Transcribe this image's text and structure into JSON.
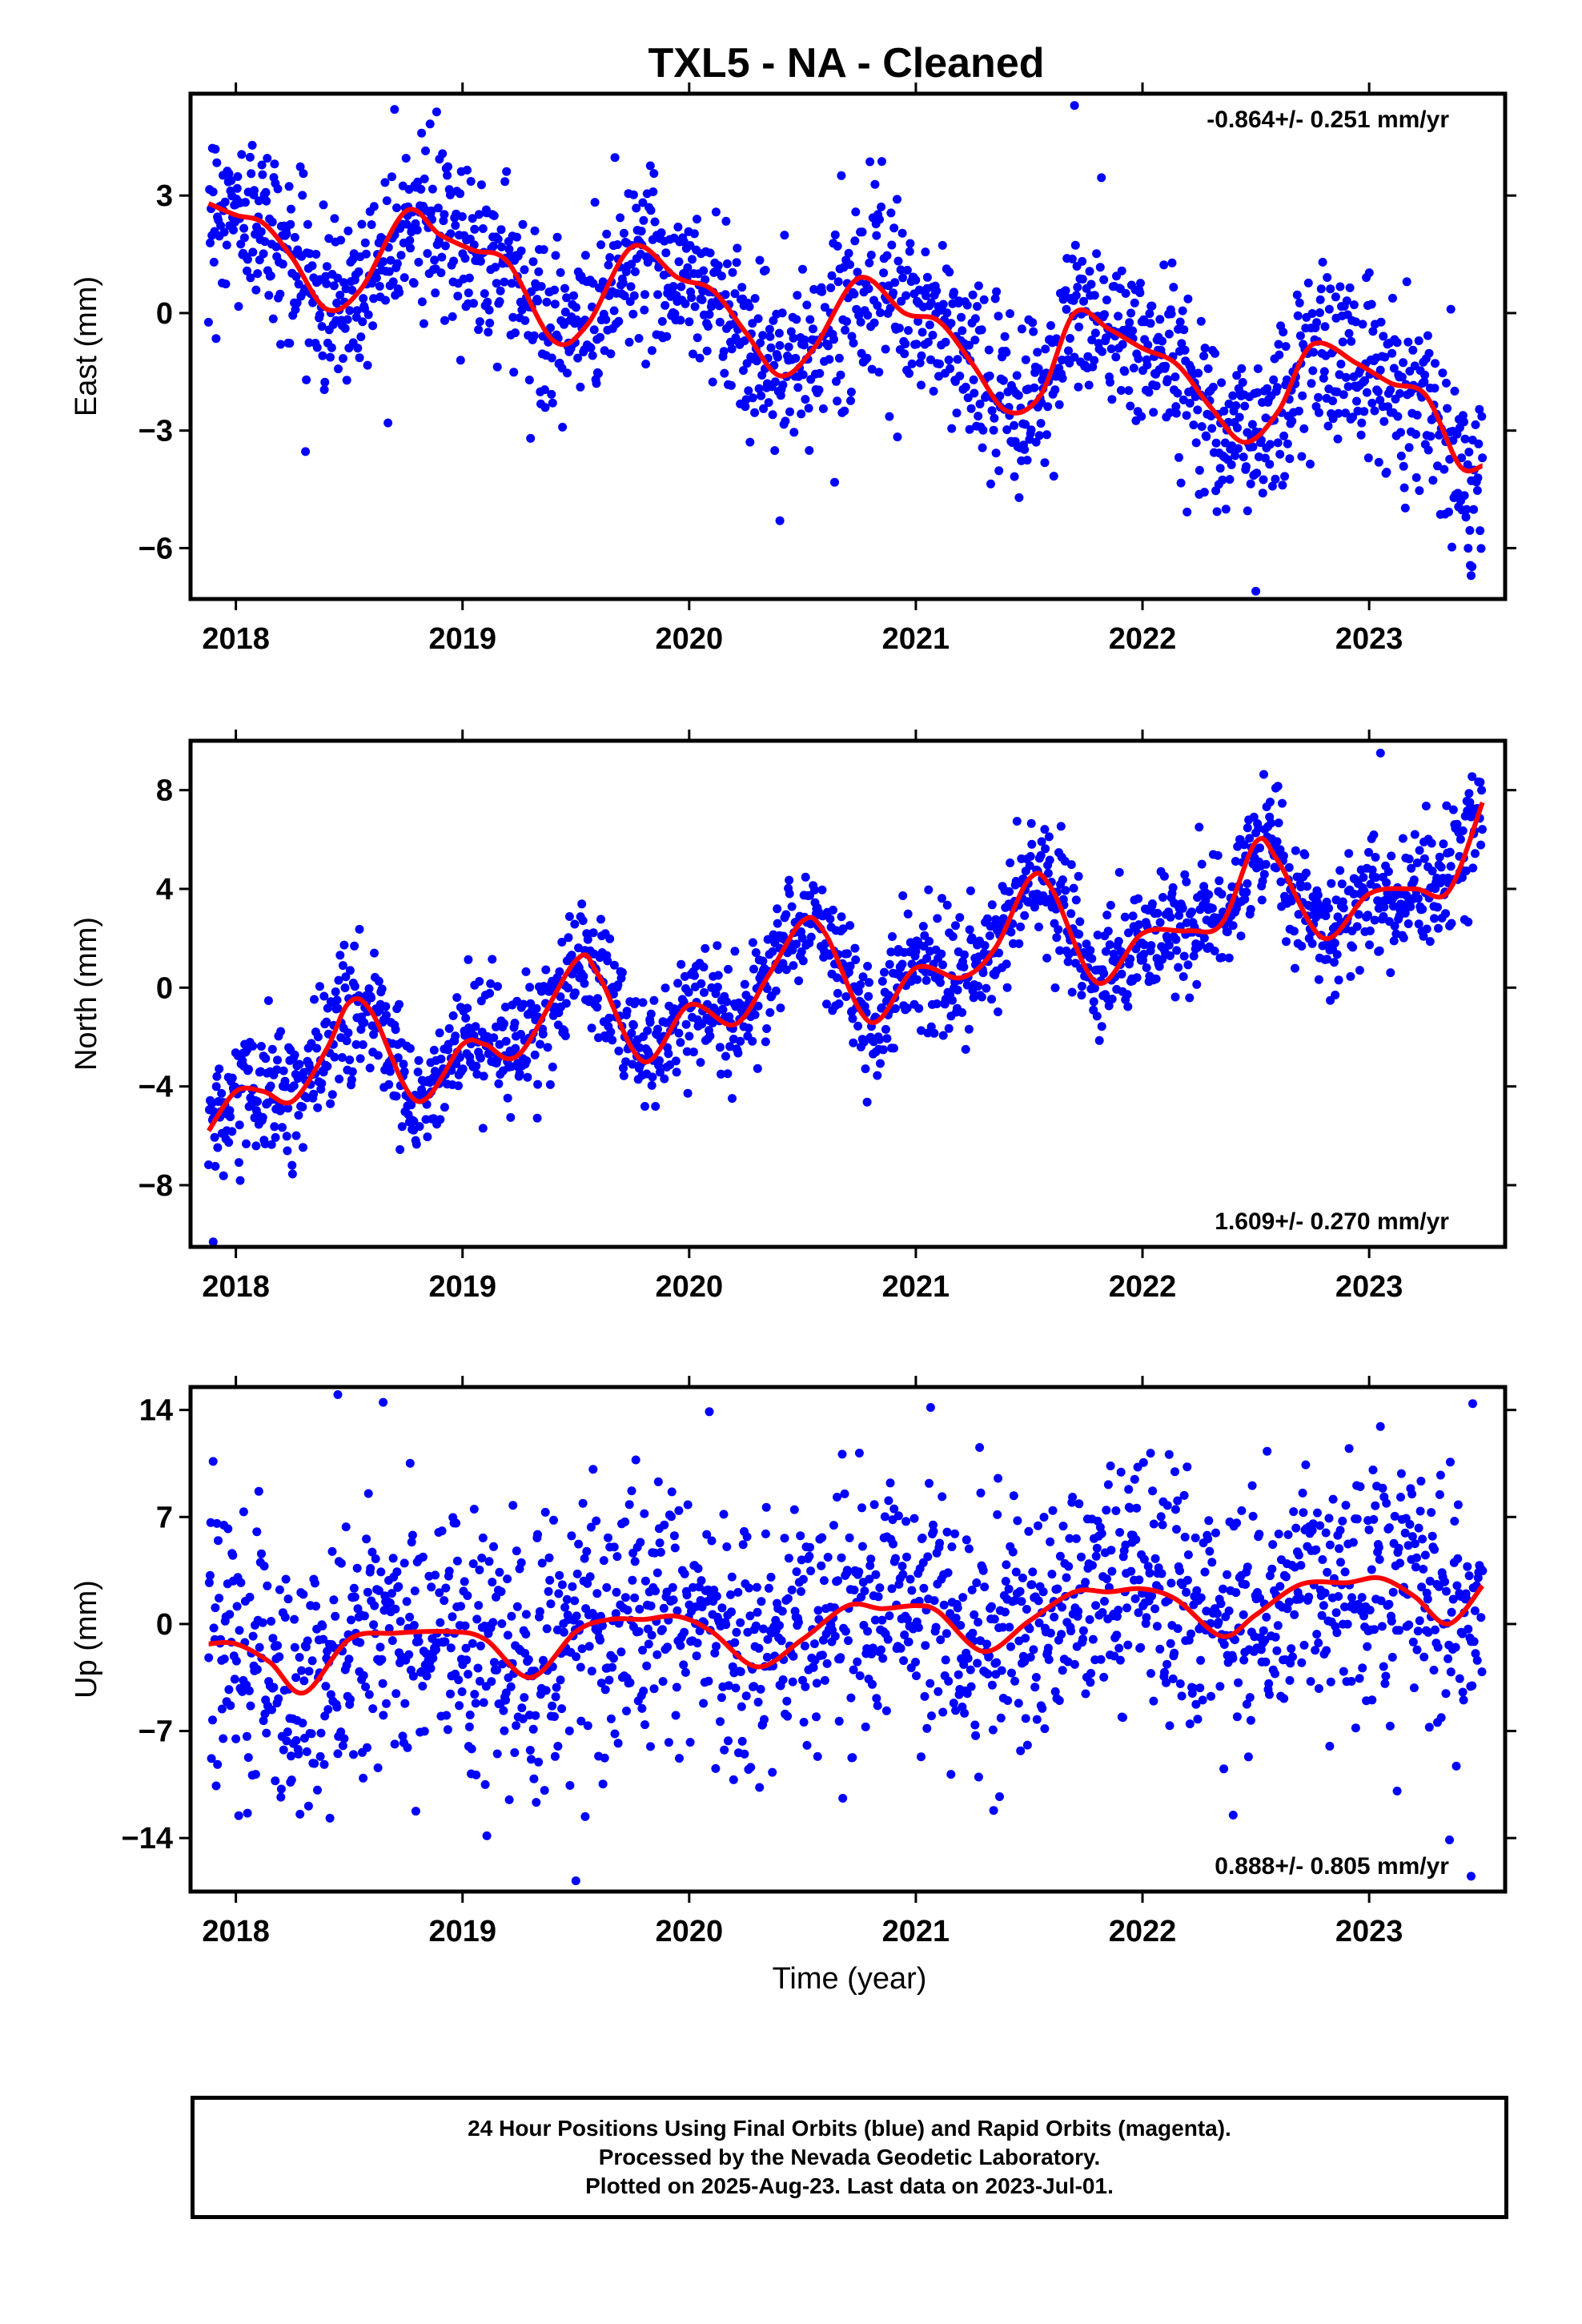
{
  "title": "TXL5  - NA - Cleaned",
  "xlabel": "Time (year)",
  "footer": [
    "24 Hour Positions Using Final Orbits (blue) and Rapid Orbits (magenta).",
    "Processed by the Nevada Geodetic Laboratory.",
    "Plotted on 2025-Aug-23. Last data on 2023-Jul-01."
  ],
  "colors": {
    "points": "#0000ff",
    "model": "#ff0000",
    "axes": "#000000"
  },
  "chart_data": [
    {
      "type": "scatter",
      "component": "east",
      "ylabel": "East (mm)",
      "rate_label": "-0.864+/- 0.251 mm/yr",
      "rate_position": "top-right",
      "xlim": [
        2017.8,
        2023.6
      ],
      "ylim": [
        -7.3,
        5.6
      ],
      "xticks": [
        2018,
        2019,
        2020,
        2021,
        2022,
        2023
      ],
      "yticks": [
        3,
        0,
        -3,
        -6
      ],
      "ytick_labels": [
        "3",
        "0",
        "−3",
        "−6"
      ],
      "model_curve": {
        "x": [
          2017.88,
          2018.0,
          2018.12,
          2018.25,
          2018.4,
          2018.55,
          2018.75,
          2018.9,
          2019.05,
          2019.2,
          2019.4,
          2019.55,
          2019.75,
          2019.95,
          2020.1,
          2020.25,
          2020.4,
          2020.55,
          2020.75,
          2020.95,
          2021.1,
          2021.25,
          2021.4,
          2021.55,
          2021.7,
          2021.85,
          2022.0,
          2022.15,
          2022.3,
          2022.45,
          2022.6,
          2022.75,
          2022.95,
          2023.1,
          2023.25,
          2023.4,
          2023.5
        ],
        "y": [
          2.8,
          2.5,
          2.3,
          1.4,
          0.1,
          0.6,
          2.6,
          2.0,
          1.6,
          1.3,
          -0.7,
          -0.3,
          1.7,
          0.9,
          0.6,
          -0.5,
          -1.6,
          -0.9,
          0.9,
          0.0,
          -0.2,
          -1.3,
          -2.5,
          -2.1,
          0.0,
          -0.4,
          -0.9,
          -1.3,
          -2.4,
          -3.3,
          -2.5,
          -0.8,
          -1.3,
          -1.8,
          -2.1,
          -3.9,
          -3.9
        ]
      },
      "points_model": {
        "trend": -0.864,
        "seasonal_from_model": true,
        "noise_sd": 1.1,
        "count": 1700,
        "outliers": [
          [
            2018.7,
            5.2
          ],
          [
            2019.3,
            -3.2
          ],
          [
            2020.4,
            -5.3
          ],
          [
            2021.7,
            5.3
          ],
          [
            2022.5,
            -7.1
          ],
          [
            2023.45,
            -6.7
          ]
        ]
      }
    },
    {
      "type": "scatter",
      "component": "north",
      "ylabel": "North (mm)",
      "rate_label": "1.609+/- 0.270 mm/yr",
      "rate_position": "bottom-right",
      "xlim": [
        2017.8,
        2023.6
      ],
      "ylim": [
        -10.5,
        10.0
      ],
      "xticks": [
        2018,
        2019,
        2020,
        2021,
        2022,
        2023
      ],
      "yticks": [
        8,
        4,
        0,
        -4,
        -8
      ],
      "ytick_labels": [
        "8",
        "4",
        "0",
        "−4",
        "−8"
      ],
      "model_curve": {
        "x": [
          2017.88,
          2018.0,
          2018.12,
          2018.25,
          2018.4,
          2018.5,
          2018.6,
          2018.8,
          2019.0,
          2019.1,
          2019.25,
          2019.5,
          2019.6,
          2019.8,
          2020.0,
          2020.2,
          2020.35,
          2020.5,
          2020.6,
          2020.8,
          2021.0,
          2021.2,
          2021.35,
          2021.5,
          2021.6,
          2021.8,
          2022.0,
          2022.2,
          2022.35,
          2022.5,
          2022.6,
          2022.8,
          2023.0,
          2023.2,
          2023.35,
          2023.5
        ],
        "y": [
          -5.8,
          -4.2,
          -4.2,
          -4.6,
          -2.5,
          -0.6,
          -1.0,
          -4.6,
          -2.3,
          -2.3,
          -2.7,
          1.1,
          0.5,
          -3.0,
          -0.7,
          -1.5,
          0.5,
          2.7,
          2.2,
          -1.4,
          0.8,
          0.4,
          1.6,
          4.4,
          4.0,
          0.2,
          2.2,
          2.3,
          2.6,
          5.9,
          5.1,
          2.0,
          3.8,
          4.0,
          3.9,
          7.5
        ]
      },
      "points_model": {
        "trend": 1.609,
        "seasonal_from_model": true,
        "noise_sd": 1.25,
        "count": 1700,
        "outliers": [
          [
            2017.9,
            -10.3
          ],
          [
            2022.25,
            6.5
          ],
          [
            2023.05,
            9.5
          ],
          [
            2022.85,
            -0.3
          ]
        ]
      }
    },
    {
      "type": "scatter",
      "component": "up",
      "ylabel": "Up (mm)",
      "rate_label": "0.888+/- 0.805 mm/yr",
      "rate_position": "bottom-right",
      "xlim": [
        2017.8,
        2023.6
      ],
      "ylim": [
        -17.5,
        15.5
      ],
      "xticks": [
        2018,
        2019,
        2020,
        2021,
        2022,
        2023
      ],
      "yticks": [
        14,
        7,
        0,
        -7,
        -14
      ],
      "ytick_labels": [
        "14",
        "7",
        "0",
        "−7",
        "−14"
      ],
      "model_curve": {
        "x": [
          2017.88,
          2018.0,
          2018.15,
          2018.3,
          2018.5,
          2018.7,
          2018.95,
          2019.1,
          2019.3,
          2019.5,
          2019.65,
          2019.8,
          2019.95,
          2020.1,
          2020.3,
          2020.5,
          2020.7,
          2020.85,
          2021.0,
          2021.1,
          2021.3,
          2021.5,
          2021.7,
          2021.85,
          2022.0,
          2022.15,
          2022.35,
          2022.5,
          2022.7,
          2022.9,
          2023.05,
          2023.2,
          2023.35,
          2023.5
        ],
        "y": [
          -1.3,
          -1.3,
          -2.5,
          -4.5,
          -1.0,
          -0.6,
          -0.5,
          -1.0,
          -3.5,
          -0.5,
          0.3,
          0.3,
          0.5,
          -0.5,
          -2.8,
          -1.0,
          1.2,
          1.0,
          1.2,
          0.8,
          -1.8,
          0.2,
          2.1,
          2.1,
          2.3,
          1.6,
          -0.8,
          0.6,
          2.6,
          2.7,
          3.0,
          1.8,
          0.0,
          2.5
        ]
      },
      "points_model": {
        "trend": 0.888,
        "seasonal_from_model": true,
        "noise_sd": 4.2,
        "count": 1700,
        "outliers": [
          [
            2018.45,
            15
          ],
          [
            2018.65,
            14.5
          ],
          [
            2019.5,
            -16.8
          ],
          [
            2022.4,
            -12.5
          ],
          [
            2023.45,
            -16.5
          ]
        ]
      }
    }
  ]
}
